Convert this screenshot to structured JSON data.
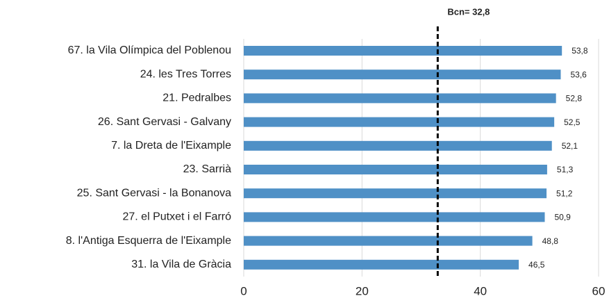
{
  "chart_data": {
    "type": "hbar",
    "categories": [
      "67. la Vila Olímpica del Poblenou",
      "24. les Tres Torres",
      "21. Pedralbes",
      "26. Sant Gervasi - Galvany",
      "7. la Dreta de l'Eixample",
      "23. Sarrià",
      "25. Sant Gervasi - la Bonanova",
      "27. el Putxet i el Farró",
      "8. l'Antiga Esquerra de l'Eixample",
      "31. la Vila de Gràcia"
    ],
    "values": [
      53.8,
      53.6,
      52.8,
      52.5,
      52.1,
      51.3,
      51.2,
      50.9,
      48.8,
      46.5
    ],
    "value_labels": [
      "53,8",
      "53,6",
      "52,8",
      "52,5",
      "52,1",
      "51,3",
      "51,2",
      "50,9",
      "48,8",
      "46,5"
    ],
    "color": "#4f90c6",
    "xlim": [
      0,
      60
    ],
    "xticks": [
      0,
      20,
      40,
      60
    ],
    "grid": true,
    "reference_line": {
      "value": 32.8,
      "label": "Bcn= 32,8"
    }
  }
}
